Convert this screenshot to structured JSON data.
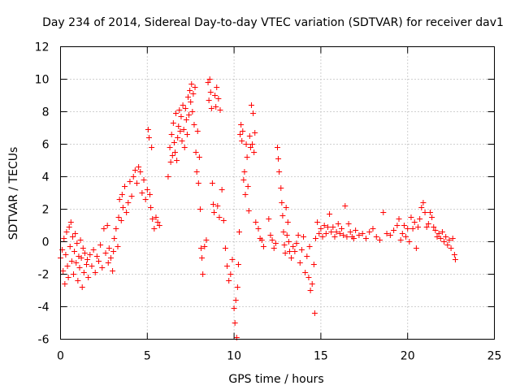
{
  "chart_data": {
    "type": "scatter",
    "title": "Day 234 of 2014, Sidereal Day-to-day VTEC variation (SDTVAR) for receiver dav1",
    "xlabel": "GPS time / hours",
    "ylabel": "SDTVAR / TECUs",
    "xlim": [
      0,
      25
    ],
    "ylim": [
      -6,
      12
    ],
    "x_ticks": [
      0,
      5,
      10,
      15,
      20,
      25
    ],
    "y_ticks": [
      -6,
      -4,
      -2,
      0,
      2,
      4,
      6,
      8,
      10,
      12
    ],
    "grid": true,
    "marker": "+",
    "marker_color": "#ff0000",
    "series": [
      {
        "name": "SDTVAR",
        "points": [
          [
            0.0,
            -1.0
          ],
          [
            0.1,
            -0.5
          ],
          [
            0.15,
            -1.8
          ],
          [
            0.2,
            0.2
          ],
          [
            0.25,
            -2.6
          ],
          [
            0.3,
            -0.8
          ],
          [
            0.35,
            0.6
          ],
          [
            0.4,
            -1.5
          ],
          [
            0.45,
            -2.2
          ],
          [
            0.5,
            0.9
          ],
          [
            0.55,
            -0.3
          ],
          [
            0.6,
            1.2
          ],
          [
            0.65,
            -1.2
          ],
          [
            0.7,
            0.3
          ],
          [
            0.75,
            -2.0
          ],
          [
            0.8,
            -0.6
          ],
          [
            0.85,
            0.5
          ],
          [
            0.9,
            -1.3
          ],
          [
            0.95,
            -0.1
          ],
          [
            1.0,
            -2.4
          ],
          [
            1.05,
            -0.9
          ],
          [
            1.1,
            -1.6
          ],
          [
            1.15,
            0.1
          ],
          [
            1.2,
            -1.0
          ],
          [
            1.25,
            -2.8
          ],
          [
            1.3,
            -0.4
          ],
          [
            1.35,
            -1.9
          ],
          [
            1.4,
            -0.7
          ],
          [
            1.5,
            -1.4
          ],
          [
            1.55,
            -1.1
          ],
          [
            1.6,
            -2.2
          ],
          [
            1.7,
            -0.8
          ],
          [
            1.8,
            -1.5
          ],
          [
            1.9,
            -0.5
          ],
          [
            2.0,
            -1.9
          ],
          [
            2.1,
            -0.9
          ],
          [
            2.2,
            -1.2
          ],
          [
            2.3,
            -0.2
          ],
          [
            2.4,
            -1.6
          ],
          [
            2.5,
            0.8
          ],
          [
            2.6,
            -0.7
          ],
          [
            2.7,
            1.0
          ],
          [
            2.75,
            -1.3
          ],
          [
            2.8,
            -0.4
          ],
          [
            2.9,
            -1.0
          ],
          [
            3.0,
            -1.8
          ],
          [
            3.05,
            -0.6
          ],
          [
            3.1,
            0.2
          ],
          [
            3.2,
            0.8
          ],
          [
            3.3,
            -0.3
          ],
          [
            3.35,
            1.5
          ],
          [
            3.4,
            2.6
          ],
          [
            3.5,
            1.3
          ],
          [
            3.55,
            2.9
          ],
          [
            3.6,
            2.1
          ],
          [
            3.7,
            3.4
          ],
          [
            3.8,
            1.8
          ],
          [
            3.9,
            2.4
          ],
          [
            4.0,
            3.7
          ],
          [
            4.1,
            2.8
          ],
          [
            4.2,
            4.0
          ],
          [
            4.3,
            4.4
          ],
          [
            4.4,
            3.6
          ],
          [
            4.5,
            4.6
          ],
          [
            4.6,
            4.3
          ],
          [
            4.7,
            3.0
          ],
          [
            4.8,
            3.8
          ],
          [
            4.9,
            2.6
          ],
          [
            5.0,
            3.2
          ],
          [
            5.05,
            6.9
          ],
          [
            5.1,
            6.4
          ],
          [
            5.15,
            2.9
          ],
          [
            5.2,
            2.1
          ],
          [
            5.25,
            5.8
          ],
          [
            5.3,
            1.4
          ],
          [
            5.4,
            0.8
          ],
          [
            5.5,
            1.5
          ],
          [
            5.6,
            1.2
          ],
          [
            5.7,
            1.0
          ],
          [
            6.2,
            4.0
          ],
          [
            6.3,
            5.8
          ],
          [
            6.35,
            4.9
          ],
          [
            6.4,
            6.6
          ],
          [
            6.45,
            5.3
          ],
          [
            6.5,
            7.3
          ],
          [
            6.55,
            6.1
          ],
          [
            6.6,
            5.5
          ],
          [
            6.65,
            7.9
          ],
          [
            6.7,
            5.0
          ],
          [
            6.75,
            6.4
          ],
          [
            6.8,
            7.1
          ],
          [
            6.85,
            8.1
          ],
          [
            6.9,
            6.8
          ],
          [
            6.95,
            7.7
          ],
          [
            7.0,
            6.2
          ],
          [
            7.05,
            8.4
          ],
          [
            7.1,
            6.9
          ],
          [
            7.15,
            5.8
          ],
          [
            7.2,
            8.2
          ],
          [
            7.25,
            7.5
          ],
          [
            7.3,
            6.6
          ],
          [
            7.35,
            8.9
          ],
          [
            7.4,
            7.8
          ],
          [
            7.45,
            9.3
          ],
          [
            7.5,
            8.6
          ],
          [
            7.55,
            9.7
          ],
          [
            7.6,
            8.0
          ],
          [
            7.65,
            9.1
          ],
          [
            7.7,
            7.2
          ],
          [
            7.75,
            9.5
          ],
          [
            7.8,
            5.5
          ],
          [
            7.85,
            4.3
          ],
          [
            7.9,
            6.8
          ],
          [
            7.95,
            3.6
          ],
          [
            8.0,
            5.2
          ],
          [
            8.05,
            2.0
          ],
          [
            8.1,
            -0.4
          ],
          [
            8.15,
            -1.0
          ],
          [
            8.2,
            -2.0
          ],
          [
            8.3,
            -0.3
          ],
          [
            8.4,
            0.1
          ],
          [
            8.5,
            9.8
          ],
          [
            8.55,
            8.7
          ],
          [
            8.6,
            10.0
          ],
          [
            8.65,
            9.2
          ],
          [
            8.7,
            8.2
          ],
          [
            8.75,
            3.6
          ],
          [
            8.8,
            2.3
          ],
          [
            8.85,
            1.8
          ],
          [
            8.9,
            9.0
          ],
          [
            8.95,
            8.3
          ],
          [
            9.0,
            9.5
          ],
          [
            9.05,
            2.2
          ],
          [
            9.1,
            8.8
          ],
          [
            9.15,
            1.5
          ],
          [
            9.2,
            8.1
          ],
          [
            9.3,
            3.2
          ],
          [
            9.4,
            1.3
          ],
          [
            9.5,
            -0.4
          ],
          [
            9.6,
            -1.5
          ],
          [
            9.7,
            -2.4
          ],
          [
            9.8,
            -2.0
          ],
          [
            9.9,
            -1.1
          ],
          [
            10.0,
            -4.1
          ],
          [
            10.05,
            -5.0
          ],
          [
            10.1,
            -3.6
          ],
          [
            10.15,
            -5.9
          ],
          [
            10.2,
            -2.8
          ],
          [
            10.25,
            -1.4
          ],
          [
            10.3,
            0.6
          ],
          [
            10.35,
            6.6
          ],
          [
            10.4,
            7.2
          ],
          [
            10.45,
            6.2
          ],
          [
            10.5,
            6.8
          ],
          [
            10.55,
            3.8
          ],
          [
            10.6,
            4.3
          ],
          [
            10.65,
            2.9
          ],
          [
            10.7,
            6.0
          ],
          [
            10.75,
            5.2
          ],
          [
            10.8,
            3.4
          ],
          [
            10.85,
            1.9
          ],
          [
            10.9,
            6.5
          ],
          [
            10.95,
            5.8
          ],
          [
            11.0,
            8.4
          ],
          [
            11.05,
            6.0
          ],
          [
            11.1,
            7.9
          ],
          [
            11.15,
            5.5
          ],
          [
            11.2,
            6.7
          ],
          [
            11.25,
            1.2
          ],
          [
            11.4,
            0.8
          ],
          [
            11.5,
            0.2
          ],
          [
            11.6,
            0.1
          ],
          [
            11.7,
            -0.3
          ],
          [
            12.0,
            1.4
          ],
          [
            12.1,
            0.4
          ],
          [
            12.2,
            0.1
          ],
          [
            12.3,
            -0.4
          ],
          [
            12.4,
            -0.1
          ],
          [
            12.5,
            5.8
          ],
          [
            12.55,
            5.1
          ],
          [
            12.6,
            4.3
          ],
          [
            12.7,
            3.3
          ],
          [
            12.75,
            2.4
          ],
          [
            12.8,
            1.6
          ],
          [
            12.85,
            0.6
          ],
          [
            12.9,
            -0.2
          ],
          [
            12.95,
            -0.7
          ],
          [
            13.0,
            2.1
          ],
          [
            13.05,
            0.4
          ],
          [
            13.1,
            1.2
          ],
          [
            13.15,
            0.0
          ],
          [
            13.2,
            -0.6
          ],
          [
            13.3,
            -1.0
          ],
          [
            13.4,
            -0.3
          ],
          [
            13.5,
            -0.6
          ],
          [
            13.6,
            -0.1
          ],
          [
            13.7,
            0.4
          ],
          [
            13.8,
            -1.3
          ],
          [
            13.9,
            -0.5
          ],
          [
            14.0,
            0.3
          ],
          [
            14.1,
            -1.9
          ],
          [
            14.2,
            -0.9
          ],
          [
            14.3,
            -2.2
          ],
          [
            14.35,
            -0.3
          ],
          [
            14.4,
            -3.0
          ],
          [
            14.5,
            -2.6
          ],
          [
            14.6,
            -1.4
          ],
          [
            14.65,
            -4.4
          ],
          [
            14.7,
            0.2
          ],
          [
            14.8,
            1.2
          ],
          [
            14.9,
            0.5
          ],
          [
            15.0,
            0.8
          ],
          [
            15.1,
            0.3
          ],
          [
            15.2,
            1.0
          ],
          [
            15.3,
            0.5
          ],
          [
            15.4,
            0.9
          ],
          [
            15.5,
            1.7
          ],
          [
            15.6,
            0.6
          ],
          [
            15.7,
            0.9
          ],
          [
            15.8,
            0.3
          ],
          [
            15.9,
            0.6
          ],
          [
            16.0,
            1.1
          ],
          [
            16.1,
            0.5
          ],
          [
            16.2,
            0.8
          ],
          [
            16.3,
            0.4
          ],
          [
            16.4,
            2.2
          ],
          [
            16.5,
            0.3
          ],
          [
            16.6,
            1.1
          ],
          [
            16.7,
            0.6
          ],
          [
            16.8,
            0.3
          ],
          [
            16.9,
            0.2
          ],
          [
            17.0,
            0.7
          ],
          [
            17.2,
            0.4
          ],
          [
            17.4,
            0.5
          ],
          [
            17.6,
            0.2
          ],
          [
            17.8,
            0.6
          ],
          [
            18.0,
            0.8
          ],
          [
            18.2,
            0.3
          ],
          [
            18.4,
            0.1
          ],
          [
            18.6,
            1.8
          ],
          [
            18.8,
            0.5
          ],
          [
            19.0,
            0.4
          ],
          [
            19.2,
            0.7
          ],
          [
            19.4,
            1.0
          ],
          [
            19.5,
            1.4
          ],
          [
            19.6,
            0.1
          ],
          [
            19.7,
            0.5
          ],
          [
            19.8,
            1.0
          ],
          [
            19.9,
            0.3
          ],
          [
            20.0,
            0.8
          ],
          [
            20.1,
            0.0
          ],
          [
            20.2,
            1.5
          ],
          [
            20.3,
            0.8
          ],
          [
            20.4,
            1.2
          ],
          [
            20.5,
            -0.4
          ],
          [
            20.6,
            0.9
          ],
          [
            20.7,
            1.4
          ],
          [
            20.8,
            2.1
          ],
          [
            20.9,
            2.4
          ],
          [
            21.0,
            1.8
          ],
          [
            21.1,
            0.9
          ],
          [
            21.2,
            1.1
          ],
          [
            21.3,
            1.8
          ],
          [
            21.4,
            1.5
          ],
          [
            21.5,
            0.9
          ],
          [
            21.6,
            0.7
          ],
          [
            21.7,
            0.3
          ],
          [
            21.8,
            0.5
          ],
          [
            21.9,
            0.2
          ],
          [
            22.0,
            0.6
          ],
          [
            22.1,
            0.0
          ],
          [
            22.2,
            0.3
          ],
          [
            22.3,
            -0.2
          ],
          [
            22.4,
            0.1
          ],
          [
            22.5,
            -0.4
          ],
          [
            22.6,
            0.2
          ],
          [
            22.7,
            -0.8
          ],
          [
            22.75,
            -1.1
          ]
        ]
      }
    ]
  }
}
